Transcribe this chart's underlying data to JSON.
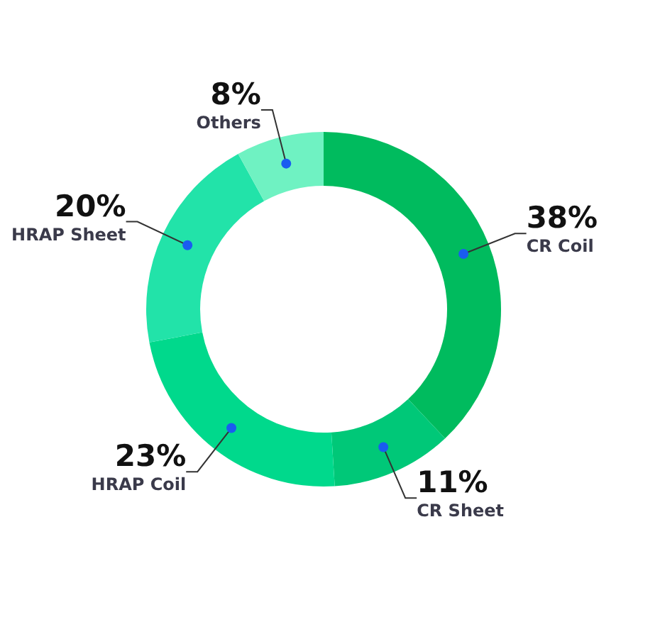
{
  "chart_data": {
    "type": "donut",
    "categories": [
      "CR Coil",
      "CR Sheet",
      "HRAP Coil",
      "HRAP Sheet",
      "Others"
    ],
    "values": [
      38,
      11,
      23,
      20,
      8
    ],
    "value_labels": [
      "38%",
      "11%",
      "23%",
      "20%",
      "8%"
    ],
    "colors": [
      "#00bb5e",
      "#00c878",
      "#00d98c",
      "#22e3a9",
      "#6ff2c2"
    ]
  }
}
